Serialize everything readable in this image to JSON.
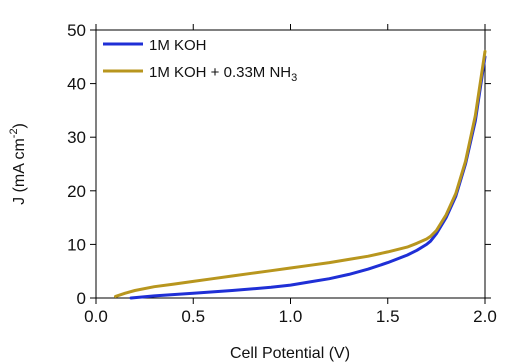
{
  "chart_data": {
    "type": "line",
    "title": "",
    "xlabel": "Cell Potential (V)",
    "ylabel": {
      "main": "J (mA cm",
      "sup": "-2",
      "close": ")"
    },
    "xlim": [
      0.0,
      2.0
    ],
    "ylim": [
      0,
      50
    ],
    "xticks": [
      0.0,
      0.5,
      1.0,
      1.5,
      2.0
    ],
    "xtick_labels": [
      "0.0",
      "0.5",
      "1.0",
      "1.5",
      "2.0"
    ],
    "yticks": [
      0,
      10,
      20,
      30,
      40,
      50
    ],
    "ytick_labels": [
      "0",
      "10",
      "20",
      "30",
      "40",
      "50"
    ],
    "grid": false,
    "legend_position": "top-left",
    "series": [
      {
        "name": "1M KOH",
        "color": "#1f2fd6",
        "x": [
          0.18,
          0.3,
          0.5,
          0.7,
          0.9,
          1.0,
          1.1,
          1.2,
          1.3,
          1.4,
          1.5,
          1.6,
          1.65,
          1.7,
          1.72,
          1.75,
          1.8,
          1.85,
          1.9,
          1.95,
          2.0
        ],
        "y": [
          0.0,
          0.4,
          0.9,
          1.4,
          2.0,
          2.4,
          3.0,
          3.6,
          4.4,
          5.4,
          6.6,
          8.0,
          8.9,
          10.0,
          10.6,
          12.0,
          15.0,
          19.0,
          25.0,
          33.0,
          45.0
        ]
      },
      {
        "name_main": "1M KOH + 0.33M NH",
        "name_sub": "3",
        "color": "#b8961e",
        "x": [
          0.1,
          0.15,
          0.2,
          0.3,
          0.4,
          0.5,
          0.6,
          0.7,
          0.8,
          0.9,
          1.0,
          1.1,
          1.2,
          1.3,
          1.4,
          1.5,
          1.6,
          1.65,
          1.7,
          1.72,
          1.75,
          1.8,
          1.85,
          1.9,
          1.95,
          2.0
        ],
        "y": [
          0.3,
          0.9,
          1.4,
          2.1,
          2.6,
          3.1,
          3.6,
          4.1,
          4.6,
          5.1,
          5.6,
          6.1,
          6.6,
          7.2,
          7.8,
          8.6,
          9.5,
          10.2,
          11.0,
          11.5,
          12.6,
          15.5,
          19.5,
          25.5,
          34.0,
          46.0
        ]
      }
    ]
  }
}
